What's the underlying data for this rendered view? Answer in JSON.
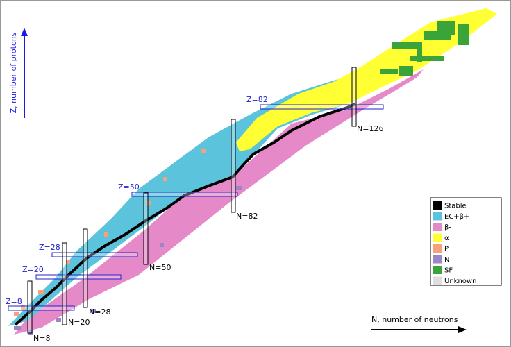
{
  "axes": {
    "y_label": "Z, number of protons",
    "x_label": "N, number of neutrons"
  },
  "magic_numbers": {
    "protons": [
      "Z=8",
      "Z=20",
      "Z=28",
      "Z=50",
      "Z=82"
    ],
    "neutrons": [
      "N=8",
      "N=20",
      "N=28",
      "N=50",
      "N=82",
      "N=126"
    ]
  },
  "legend": [
    {
      "label": "Stable",
      "color": "#000000"
    },
    {
      "label": "EC+β+",
      "color": "#5bc4dc"
    },
    {
      "label": "β-",
      "color": "#e589c8"
    },
    {
      "label": "α",
      "color": "#ffff33"
    },
    {
      "label": "P",
      "color": "#f7a07a"
    },
    {
      "label": "N",
      "color": "#9b86c8"
    },
    {
      "label": "SF",
      "color": "#3aa43a"
    },
    {
      "label": "Unknown",
      "color": "#dedede"
    }
  ]
}
